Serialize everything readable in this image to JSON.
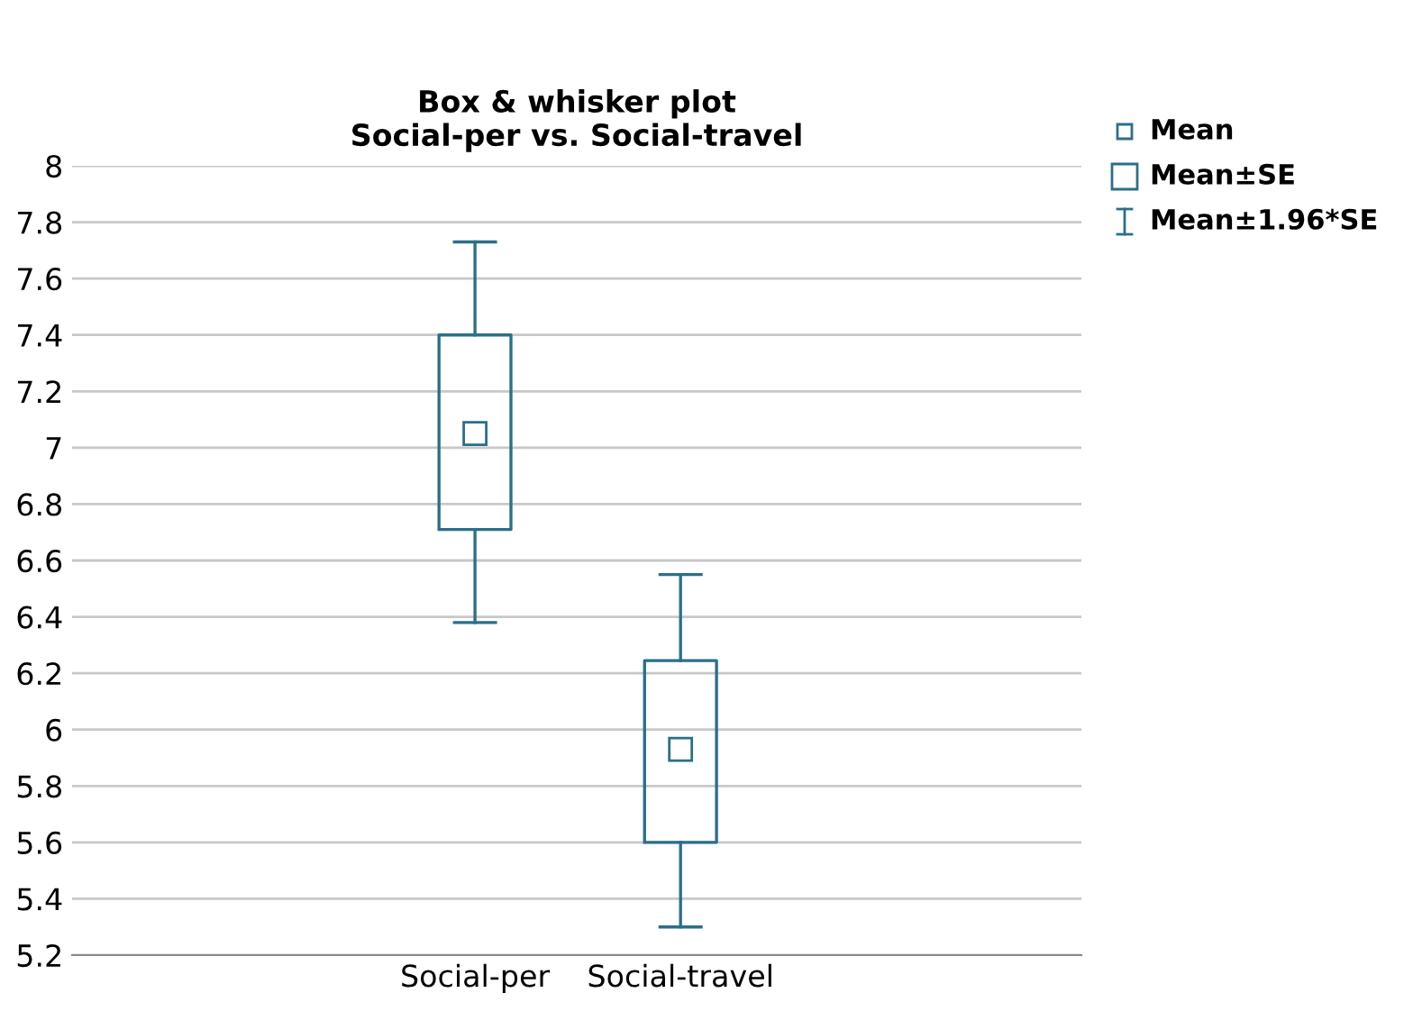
{
  "chart_data": {
    "type": "box",
    "title": "Box & whisker plot\nSocial-per vs. Social-travel",
    "categories": [
      "Social-per",
      "Social-travel"
    ],
    "boxes": [
      {
        "low": 6.38,
        "q1": 6.71,
        "q3": 7.4,
        "high": 7.73,
        "mean": 7.05
      },
      {
        "low": 5.3,
        "q1": 5.6,
        "q3": 6.245,
        "high": 6.55,
        "mean": 5.93
      }
    ],
    "color": "#2a6f8a",
    "ylim": [
      5.2,
      8
    ],
    "yticks": [
      5.2,
      5.4,
      5.6,
      5.8,
      6,
      6.2,
      6.4,
      6.6,
      6.8,
      7,
      7.2,
      7.4,
      7.6,
      7.8,
      8
    ],
    "grid": "y",
    "annotations": [
      "Mean",
      "Mean±SE",
      "Mean±1.96*SE"
    ]
  }
}
